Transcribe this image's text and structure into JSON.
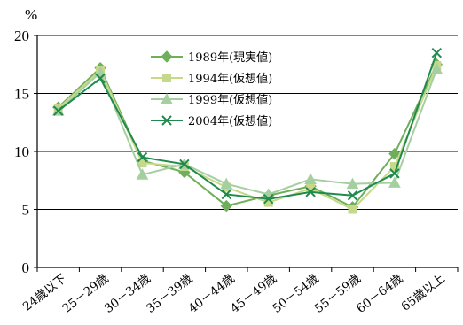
{
  "chart_data": {
    "type": "line",
    "ylabel": "%",
    "ylim": [
      0,
      20
    ],
    "yticks": [
      0,
      5,
      10,
      15,
      20
    ],
    "grid": "horizontal",
    "legend_position": "top-center",
    "categories": [
      "24歳以下",
      "25－29歳",
      "30－34歳",
      "35－39歳",
      "40－44歳",
      "45－49歳",
      "50－54歳",
      "55－59歳",
      "60－64歳",
      "65歳以上"
    ],
    "series": [
      {
        "name": "1989年(現実値)",
        "color": "#6fae5a",
        "marker": "diamond",
        "values": [
          13.8,
          17.2,
          9.2,
          8.2,
          5.3,
          6.2,
          7.0,
          5.2,
          9.8,
          17.5
        ]
      },
      {
        "name": "1994年(仮想値)",
        "color": "#c6d98a",
        "marker": "square",
        "values": [
          13.7,
          17.0,
          9.0,
          8.7,
          6.9,
          5.6,
          6.8,
          5.0,
          8.7,
          17.4
        ]
      },
      {
        "name": "1999年(仮想値)",
        "color": "#a6cfa0",
        "marker": "triangle",
        "values": [
          13.5,
          16.8,
          8.0,
          8.9,
          7.2,
          6.3,
          7.6,
          7.2,
          7.3,
          17.1
        ]
      },
      {
        "name": "2004年(仮想値)",
        "color": "#1f8a4c",
        "marker": "x",
        "values": [
          13.5,
          16.3,
          9.5,
          8.9,
          6.3,
          5.9,
          6.5,
          6.2,
          8.1,
          18.5
        ]
      }
    ]
  }
}
